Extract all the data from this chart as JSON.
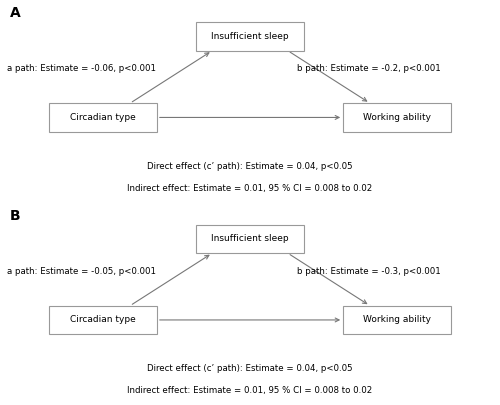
{
  "panel_A_label": "A",
  "panel_B_label": "B",
  "box_left": "Circadian type",
  "box_middle": "Insufficient sleep",
  "box_right": "Working ability",
  "panel_A": {
    "a_path": "a path: Estimate = -0.06, p<0.001",
    "b_path": "b path: Estimate = -0.2, p<0.001",
    "direct": "Direct effect (c’ path): Estimate = 0.04, p<0.05",
    "indirect": "Indirect effect: Estimate = 0.01, 95 % CI = 0.008 to 0.02"
  },
  "panel_B": {
    "a_path": "a path: Estimate = -0.05, p<0.001",
    "b_path": "b path: Estimate = -0.3, p<0.001",
    "direct": "Direct effect (c’ path): Estimate = 0.04, p<0.05",
    "indirect": "Indirect effect: Estimate = 0.01, 95 % CI = 0.008 to 0.02"
  },
  "box_color": "white",
  "box_edge_color": "#999999",
  "arrow_color": "#777777",
  "text_color": "black",
  "bg_color": "white",
  "font_size": 6.5,
  "label_font_size": 10
}
